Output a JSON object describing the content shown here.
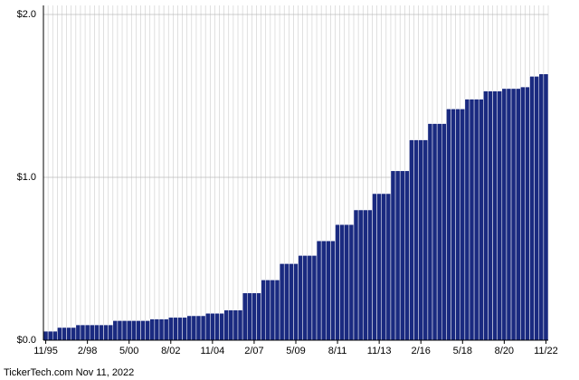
{
  "chart_data": {
    "type": "bar",
    "footer": "TickerTech.com  Nov 11, 2022",
    "color": "#1a2a80",
    "grid": true,
    "ylim": [
      0,
      2
    ],
    "yticks": [
      {
        "value": 0,
        "label": "$0.0"
      },
      {
        "value": 1,
        "label": "$1.0"
      },
      {
        "value": 2,
        "label": "$2.0"
      }
    ],
    "categories": [
      "11/95",
      null,
      null,
      null,
      null,
      null,
      null,
      null,
      null,
      "2/98",
      null,
      null,
      null,
      null,
      null,
      null,
      null,
      null,
      "5/00",
      null,
      null,
      null,
      null,
      null,
      null,
      null,
      null,
      "8/02",
      null,
      null,
      null,
      null,
      null,
      null,
      null,
      null,
      "11/04",
      null,
      null,
      null,
      null,
      null,
      null,
      null,
      null,
      "2/07",
      null,
      null,
      null,
      null,
      null,
      null,
      null,
      null,
      "5/09",
      null,
      null,
      null,
      null,
      null,
      null,
      null,
      null,
      "8/11",
      null,
      null,
      null,
      null,
      null,
      null,
      null,
      null,
      "11/13",
      null,
      null,
      null,
      null,
      null,
      null,
      null,
      null,
      "2/16",
      null,
      null,
      null,
      null,
      null,
      null,
      null,
      null,
      "5/18",
      null,
      null,
      null,
      null,
      null,
      null,
      null,
      null,
      "8/20",
      null,
      null,
      null,
      null,
      null,
      null,
      null,
      null,
      "11/22"
    ],
    "values": [
      0.055,
      0.055,
      0.055,
      0.078,
      0.078,
      0.078,
      0.078,
      0.094,
      0.094,
      0.094,
      0.094,
      0.094,
      0.094,
      0.094,
      0.094,
      0.12,
      0.12,
      0.12,
      0.12,
      0.12,
      0.12,
      0.12,
      0.12,
      0.13,
      0.13,
      0.13,
      0.13,
      0.14,
      0.14,
      0.14,
      0.14,
      0.15,
      0.15,
      0.15,
      0.15,
      0.165,
      0.165,
      0.165,
      0.165,
      0.185,
      0.185,
      0.185,
      0.185,
      0.29,
      0.29,
      0.29,
      0.29,
      0.37,
      0.37,
      0.37,
      0.37,
      0.47,
      0.47,
      0.47,
      0.47,
      0.52,
      0.52,
      0.52,
      0.52,
      0.61,
      0.61,
      0.61,
      0.61,
      0.71,
      0.71,
      0.71,
      0.71,
      0.8,
      0.8,
      0.8,
      0.8,
      0.9,
      0.9,
      0.9,
      0.9,
      1.04,
      1.04,
      1.04,
      1.04,
      1.23,
      1.23,
      1.23,
      1.23,
      1.33,
      1.33,
      1.33,
      1.33,
      1.42,
      1.42,
      1.42,
      1.42,
      1.48,
      1.48,
      1.48,
      1.48,
      1.53,
      1.53,
      1.53,
      1.53,
      1.545,
      1.545,
      1.545,
      1.545,
      1.555,
      1.555,
      1.62,
      1.62,
      1.635,
      1.635
    ]
  }
}
